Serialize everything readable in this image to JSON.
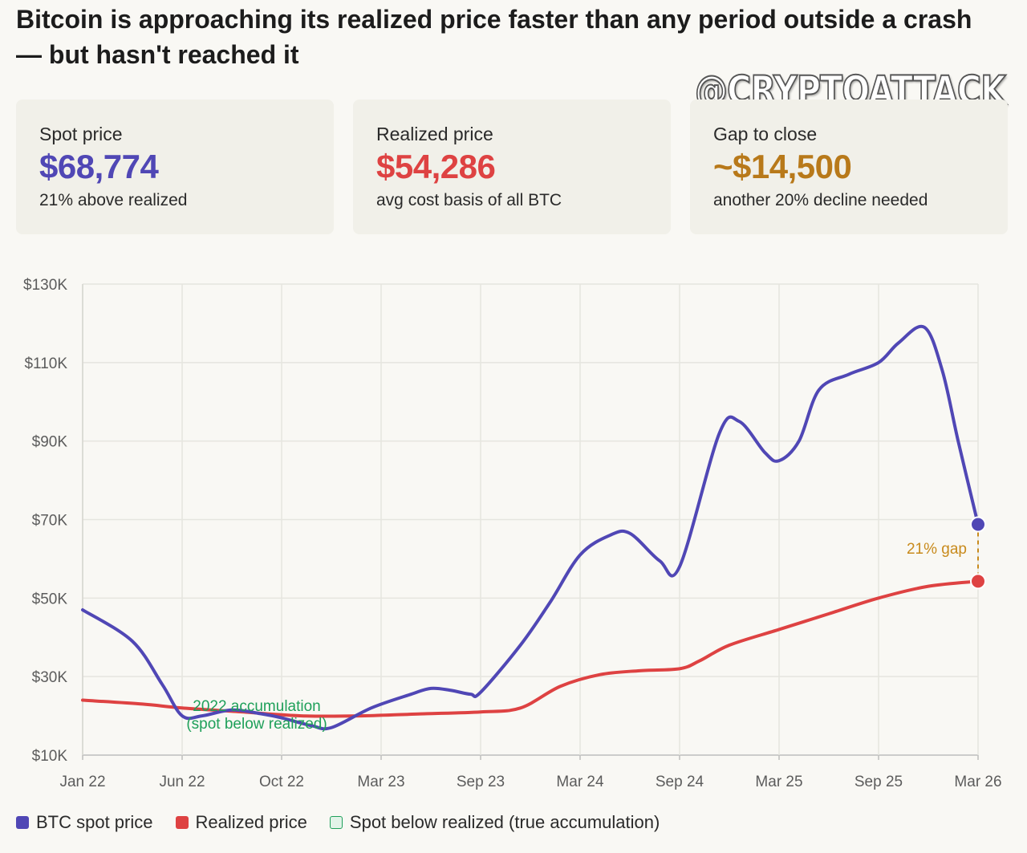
{
  "header": {
    "title": "Bitcoin is approaching its realized price faster than any period outside a crash — but hasn't reached it",
    "watermark": "@CRYPTOATTACK"
  },
  "cards": [
    {
      "label": "Spot price",
      "value": "$68,774",
      "sub": "21% above realized",
      "color": "#5047b5"
    },
    {
      "label": "Realized price",
      "value": "$54,286",
      "sub": "avg cost basis of all BTC",
      "color": "#de4242"
    },
    {
      "label": "Gap to close",
      "value": "~$14,500",
      "sub": "another 20% decline needed",
      "color": "#b8791a"
    }
  ],
  "legend": {
    "spot": "BTC spot price",
    "realized": "Realized price",
    "accumulation": "Spot below realized (true accumulation)"
  },
  "chart_data": {
    "type": "line",
    "title": "",
    "xlabel": "",
    "ylabel": "",
    "ylim": [
      10000,
      130000
    ],
    "y_ticks": [
      {
        "value": 10000,
        "label": "$10K"
      },
      {
        "value": 30000,
        "label": "$30K"
      },
      {
        "value": 50000,
        "label": "$50K"
      },
      {
        "value": 70000,
        "label": "$70K"
      },
      {
        "value": 90000,
        "label": "$90K"
      },
      {
        "value": 110000,
        "label": "$110K"
      },
      {
        "value": 130000,
        "label": "$130K"
      }
    ],
    "x_ticks": [
      {
        "t": 0,
        "label": "Jan 22"
      },
      {
        "t": 5,
        "label": "Jun 22"
      },
      {
        "t": 10,
        "label": "Oct 22"
      },
      {
        "t": 15,
        "label": "Mar 23"
      },
      {
        "t": 20,
        "label": "Sep 23"
      },
      {
        "t": 25,
        "label": "Mar 24"
      },
      {
        "t": 30,
        "label": "Sep 24"
      },
      {
        "t": 35,
        "label": "Mar 25"
      },
      {
        "t": 40,
        "label": "Sep 25"
      },
      {
        "t": 45,
        "label": "Mar 26"
      }
    ],
    "grid": true,
    "series": [
      {
        "name": "BTC spot price",
        "color": "#5047b5",
        "points": [
          [
            0,
            47000
          ],
          [
            2.5,
            39000
          ],
          [
            4,
            28000
          ],
          [
            5,
            20000
          ],
          [
            6,
            20000
          ],
          [
            7.5,
            21500
          ],
          [
            9,
            20500
          ],
          [
            10,
            19500
          ],
          [
            11.5,
            17500
          ],
          [
            12.5,
            17000
          ],
          [
            14.5,
            22000
          ],
          [
            16.5,
            25500
          ],
          [
            17.5,
            27000
          ],
          [
            18.5,
            26500
          ],
          [
            19.5,
            25500
          ],
          [
            20,
            26000
          ],
          [
            22,
            38000
          ],
          [
            23.5,
            49000
          ],
          [
            25,
            61000
          ],
          [
            26.5,
            66000
          ],
          [
            27.5,
            66500
          ],
          [
            29,
            59500
          ],
          [
            30,
            58000
          ],
          [
            32,
            92000
          ],
          [
            33,
            95000
          ],
          [
            34.3,
            87000
          ],
          [
            35,
            85000
          ],
          [
            36,
            90000
          ],
          [
            37,
            103000
          ],
          [
            38.5,
            107000
          ],
          [
            40,
            110000
          ],
          [
            41,
            115000
          ],
          [
            42.3,
            119000
          ],
          [
            43.2,
            108000
          ],
          [
            44,
            90000
          ],
          [
            45,
            68774
          ]
        ]
      },
      {
        "name": "Realized price",
        "color": "#de4242",
        "points": [
          [
            0,
            24000
          ],
          [
            3,
            23000
          ],
          [
            5,
            22000
          ],
          [
            8,
            21000
          ],
          [
            11,
            20000
          ],
          [
            14,
            20000
          ],
          [
            17,
            20500
          ],
          [
            20,
            21000
          ],
          [
            22,
            22000
          ],
          [
            24,
            27500
          ],
          [
            26,
            30500
          ],
          [
            28,
            31500
          ],
          [
            30,
            32000
          ],
          [
            31,
            34000
          ],
          [
            32.5,
            38000
          ],
          [
            35,
            42000
          ],
          [
            37.5,
            46000
          ],
          [
            40,
            50000
          ],
          [
            42.5,
            53000
          ],
          [
            45,
            54286
          ]
        ]
      }
    ],
    "annotations": [
      {
        "text": "2022 accumulation",
        "color": "#1fa05a"
      },
      {
        "text": "(spot below realized)",
        "color": "#1fa05a"
      },
      {
        "text": "21% gap",
        "color": "#c88a1c"
      }
    ]
  }
}
